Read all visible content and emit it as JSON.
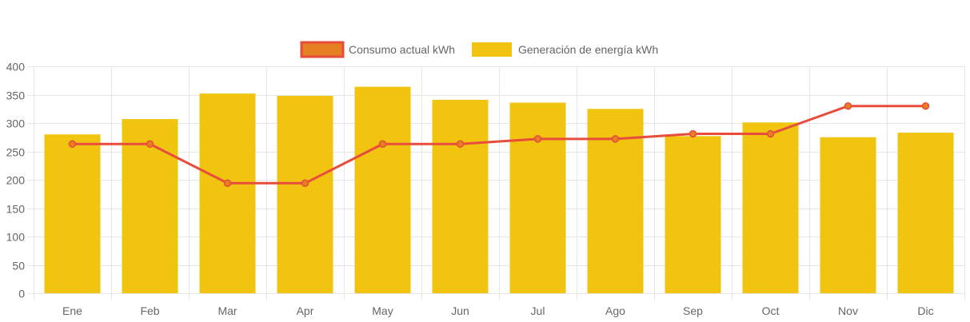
{
  "chart_data": {
    "type": "bar",
    "categories": [
      "Ene",
      "Feb",
      "Mar",
      "Apr",
      "May",
      "Jun",
      "Jul",
      "Ago",
      "Sep",
      "Oct",
      "Nov",
      "Dic"
    ],
    "series": [
      {
        "name": "Generación de energía kWh",
        "type": "bar",
        "values": [
          280,
          307,
          352,
          348,
          364,
          341,
          336,
          325,
          277,
          301,
          275,
          283
        ],
        "color": "#f1c40f"
      },
      {
        "name": "Consumo actual kWh",
        "type": "line",
        "values": [
          263,
          263,
          194,
          194,
          263,
          263,
          272,
          272,
          281,
          281,
          330,
          330
        ],
        "color": "#e74c3c",
        "point_color": "#e67e22"
      }
    ],
    "ylim": [
      0,
      400
    ],
    "yticks": [
      0,
      50,
      100,
      150,
      200,
      250,
      300,
      350,
      400
    ],
    "grid": true,
    "legend_position": "top"
  }
}
